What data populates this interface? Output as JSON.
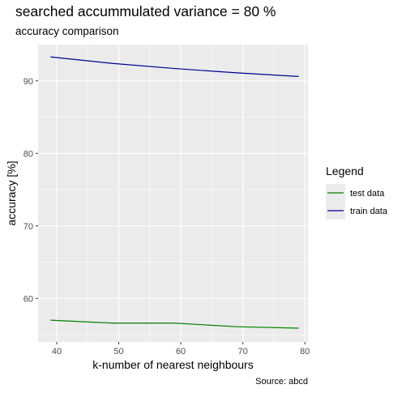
{
  "chart_data": {
    "type": "line",
    "title": "searched accummulated variance =  80 %",
    "subtitle": "accuracy comparison",
    "xlabel": "k-number of nearest neighbours",
    "ylabel": "accuracy [%]",
    "caption": "Source: abcd",
    "xlim": [
      37,
      80.5
    ],
    "ylim": [
      54,
      95
    ],
    "x_ticks": [
      40,
      50,
      60,
      70,
      80
    ],
    "y_ticks": [
      60,
      70,
      80,
      90
    ],
    "grid": true,
    "legend": {
      "title": "Legend",
      "position": "right",
      "entries": [
        "test data",
        "train data"
      ]
    },
    "series": [
      {
        "name": "test data",
        "color": "#008000",
        "x": [
          39,
          49,
          59,
          69,
          79
        ],
        "y": [
          57.0,
          56.6,
          56.6,
          56.1,
          55.9
        ]
      },
      {
        "name": "train data",
        "color": "#00008b",
        "x": [
          39,
          49,
          59,
          69,
          79
        ],
        "y": [
          93.3,
          92.4,
          91.7,
          91.1,
          90.6
        ]
      }
    ]
  }
}
